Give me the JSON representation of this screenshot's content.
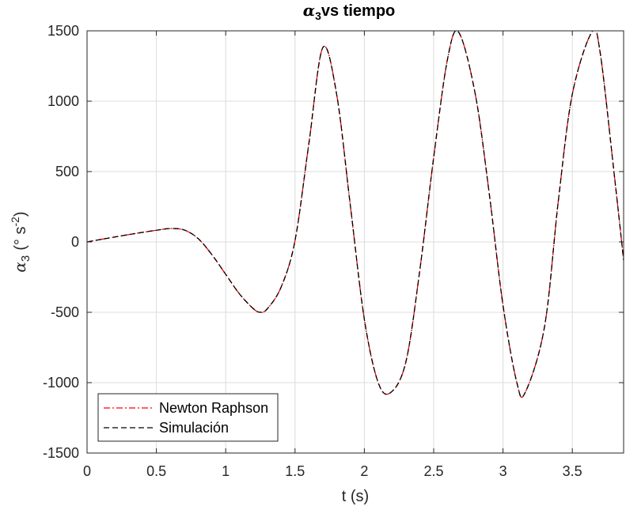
{
  "chart_data": {
    "type": "line",
    "title": {
      "symbol": "α",
      "subscript": "3",
      "text": "vs tiempo"
    },
    "xlabel": "t (s)",
    "ylabel": {
      "symbol": "α",
      "subscript": "3",
      "unit_prefix": "(° s",
      "unit_exp": "-2",
      "unit_suffix": ")"
    },
    "xlim": [
      0,
      3.87
    ],
    "ylim": [
      -1500,
      1500
    ],
    "xticks": [
      0,
      0.5,
      1,
      1.5,
      2,
      2.5,
      3,
      3.5
    ],
    "xtick_labels": [
      "0",
      "0.5",
      "1",
      "1.5",
      "2",
      "2.5",
      "3",
      "3.5"
    ],
    "yticks": [
      -1500,
      -1000,
      -500,
      0,
      500,
      1000,
      1500
    ],
    "ytick_labels": [
      "-1500",
      "-1000",
      "-500",
      "0",
      "500",
      "1000",
      "1500"
    ],
    "grid": true,
    "legend_position": "bottom-left",
    "colors": {
      "newton": "#ff0000",
      "sim": "#000000",
      "grid": "#dcdcdc",
      "axis": "#262626"
    },
    "x": [
      0,
      0.1,
      0.2,
      0.3,
      0.4,
      0.5,
      0.6,
      0.7,
      0.8,
      0.9,
      1.0,
      1.1,
      1.2,
      1.25,
      1.3,
      1.4,
      1.5,
      1.6,
      1.7,
      1.8,
      1.9,
      2.0,
      2.1,
      2.19,
      2.3,
      2.4,
      2.5,
      2.6,
      2.68,
      2.8,
      2.9,
      3.0,
      3.1,
      3.16,
      3.3,
      3.4,
      3.5,
      3.64,
      3.7,
      3.8,
      3.87
    ],
    "series": [
      {
        "name": "Newton Raphson",
        "style": "dashdot",
        "values": [
          0,
          18,
          35,
          52,
          68,
          83,
          95,
          85,
          25,
          -90,
          -230,
          -370,
          -475,
          -500,
          -475,
          -320,
          10,
          700,
          1380,
          1050,
          250,
          -550,
          -1000,
          -1070,
          -850,
          -200,
          600,
          1300,
          1490,
          1050,
          350,
          -450,
          -1000,
          -1070,
          -600,
          300,
          1050,
          1490,
          1350,
          500,
          -130
        ]
      },
      {
        "name": "Simulación",
        "style": "dashed",
        "values": [
          0,
          18,
          35,
          52,
          68,
          83,
          95,
          85,
          25,
          -90,
          -230,
          -370,
          -475,
          -500,
          -475,
          -320,
          10,
          700,
          1380,
          1050,
          250,
          -550,
          -1000,
          -1070,
          -850,
          -200,
          600,
          1300,
          1490,
          1050,
          350,
          -450,
          -1000,
          -1070,
          -600,
          300,
          1050,
          1490,
          1350,
          500,
          -130
        ]
      }
    ]
  }
}
